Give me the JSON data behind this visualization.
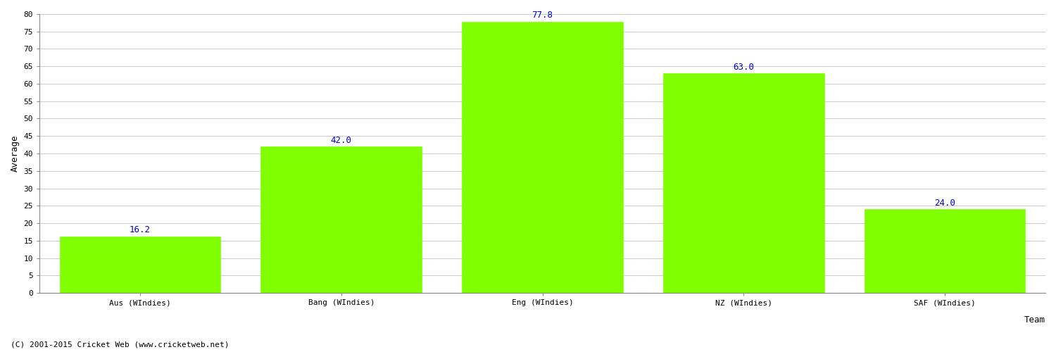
{
  "categories": [
    "Aus (WIndies)",
    "Bang (WIndies)",
    "Eng (WIndies)",
    "NZ (WIndies)",
    "SAF (WIndies)"
  ],
  "values": [
    16.2,
    42.0,
    77.8,
    63.0,
    24.0
  ],
  "bar_color": "#7FFF00",
  "bar_edge_color": "#7FFF00",
  "xlabel": "Team",
  "ylabel": "Average",
  "ylim": [
    0,
    80
  ],
  "yticks": [
    0,
    5,
    10,
    15,
    20,
    25,
    30,
    35,
    40,
    45,
    50,
    55,
    60,
    65,
    70,
    75,
    80
  ],
  "annotation_color": "#0000CC",
  "annotation_fontsize": 9,
  "axis_label_fontsize": 9,
  "tick_fontsize": 8,
  "xlabel_fontsize": 9,
  "grid_color": "#CCCCCC",
  "background_color": "#FFFFFF",
  "footer_text": "(C) 2001-2015 Cricket Web (www.cricketweb.net)",
  "footer_fontsize": 8,
  "figsize": [
    15.0,
    5.0
  ],
  "dpi": 100
}
